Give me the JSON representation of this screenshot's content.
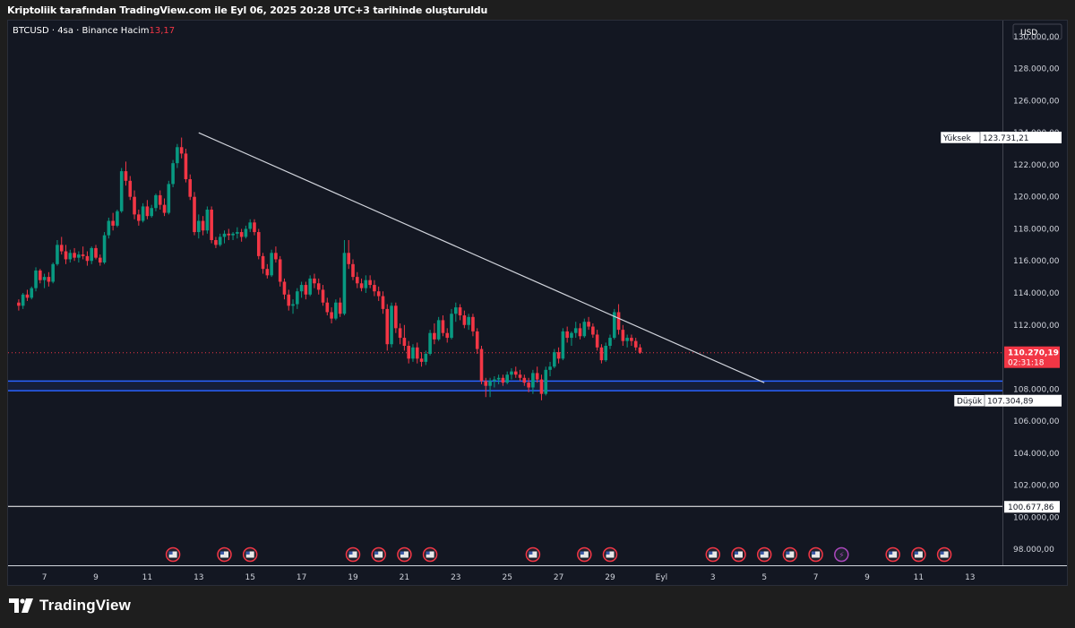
{
  "header": {
    "caption": "Kriptoliik tarafından TradingView.com ile Eyl 06, 2025 20:28 UTC+3 tarihinde oluşturuldu"
  },
  "legend": {
    "symbol": "BTCUSD · 4sa · Binance",
    "volume_label": "Hacim",
    "volume_value": "13,17"
  },
  "currency": "USD",
  "price_axis": {
    "ticks": [
      "98.000,00",
      "100.000,00",
      "102.000,00",
      "104.000,00",
      "106.000,00",
      "108.000,00",
      "110.000,00",
      "112.000,00",
      "114.000,00",
      "116.000,00",
      "118.000,00",
      "120.000,00",
      "122.000,00",
      "124.000,00",
      "126.000,00",
      "128.000,00",
      "130.000,00"
    ]
  },
  "time_axis": {
    "ticks": [
      "7",
      "9",
      "11",
      "13",
      "15",
      "17",
      "19",
      "21",
      "23",
      "25",
      "27",
      "29",
      "Eyl",
      "3",
      "5",
      "7",
      "9",
      "11",
      "13"
    ]
  },
  "labels": {
    "high_title": "Yüksek",
    "high_value": "123.731,21",
    "low_title": "Düşük",
    "low_value": "107.304,89",
    "last_price": "110.270,19",
    "countdown": "02:31:18",
    "level_value": "100.677,86"
  },
  "colors": {
    "up": "#089981",
    "down": "#f23645",
    "background": "#131722",
    "zone": "#2962ff",
    "trendline": "#d1d4dc"
  },
  "brand": {
    "name": "TradingView"
  },
  "chart_data": {
    "type": "candlestick",
    "symbol": "BTCUSD",
    "interval": "4sa",
    "exchange": "Binance",
    "y_range": [
      97000,
      131000
    ],
    "x_range_days": [
      "Ağu 6",
      "Eyl 13"
    ],
    "candles_start": "Ağu 6",
    "candle_interval_hours": 4,
    "candles": [
      [
        113400,
        113600,
        112900,
        113200
      ],
      [
        113200,
        114000,
        113000,
        113900
      ],
      [
        113900,
        114200,
        113500,
        113700
      ],
      [
        113700,
        114400,
        113600,
        114300
      ],
      [
        114300,
        115600,
        114100,
        115400
      ],
      [
        115400,
        115500,
        114600,
        114800
      ],
      [
        114800,
        115200,
        114300,
        115000
      ],
      [
        115000,
        115300,
        114400,
        114700
      ],
      [
        114700,
        115900,
        114600,
        115800
      ],
      [
        115800,
        117300,
        115700,
        117000
      ],
      [
        117000,
        117500,
        116400,
        116600
      ],
      [
        116600,
        117000,
        115800,
        116100
      ],
      [
        116100,
        116700,
        115900,
        116500
      ],
      [
        116500,
        116800,
        116000,
        116200
      ],
      [
        116200,
        116600,
        115900,
        116400
      ],
      [
        116400,
        116900,
        116100,
        116300
      ],
      [
        116300,
        116600,
        115700,
        116000
      ],
      [
        116000,
        116900,
        115800,
        116800
      ],
      [
        116800,
        117000,
        116100,
        116200
      ],
      [
        116200,
        116400,
        115700,
        115900
      ],
      [
        115900,
        117800,
        115800,
        117600
      ],
      [
        117600,
        118700,
        117400,
        118500
      ],
      [
        118500,
        119000,
        117900,
        118200
      ],
      [
        118200,
        119200,
        118100,
        119100
      ],
      [
        119100,
        121800,
        119000,
        121600
      ],
      [
        121600,
        122200,
        120700,
        121000
      ],
      [
        121000,
        121300,
        119800,
        120000
      ],
      [
        120000,
        120400,
        118600,
        118900
      ],
      [
        118900,
        119200,
        118200,
        118500
      ],
      [
        118500,
        119600,
        118400,
        119400
      ],
      [
        119400,
        119800,
        118600,
        118800
      ],
      [
        118800,
        119500,
        118700,
        119300
      ],
      [
        119300,
        120200,
        119100,
        120100
      ],
      [
        120100,
        120400,
        119200,
        119500
      ],
      [
        119500,
        119900,
        118800,
        119000
      ],
      [
        119000,
        121000,
        118900,
        120800
      ],
      [
        120800,
        122300,
        120600,
        122100
      ],
      [
        122100,
        123300,
        121800,
        123100
      ],
      [
        123100,
        123700,
        122400,
        122700
      ],
      [
        122700,
        123000,
        120900,
        121100
      ],
      [
        121100,
        121400,
        119800,
        120000
      ],
      [
        120000,
        120300,
        117600,
        117800
      ],
      [
        117800,
        118900,
        117400,
        118500
      ],
      [
        118500,
        118800,
        117600,
        117900
      ],
      [
        117900,
        119400,
        117700,
        119200
      ],
      [
        119200,
        119400,
        117100,
        117300
      ],
      [
        117300,
        117500,
        116800,
        117000
      ],
      [
        117000,
        117700,
        116900,
        117500
      ],
      [
        117500,
        117900,
        117100,
        117700
      ],
      [
        117700,
        118000,
        117300,
        117600
      ],
      [
        117600,
        117800,
        117300,
        117700
      ],
      [
        117700,
        118100,
        117400,
        117800
      ],
      [
        117800,
        118000,
        117200,
        117500
      ],
      [
        117500,
        118200,
        117400,
        118000
      ],
      [
        118000,
        118600,
        117800,
        118400
      ],
      [
        118400,
        118600,
        117600,
        117800
      ],
      [
        117800,
        118000,
        116100,
        116300
      ],
      [
        116300,
        116500,
        115200,
        115500
      ],
      [
        115500,
        115800,
        114900,
        115100
      ],
      [
        115100,
        116700,
        115000,
        116500
      ],
      [
        116500,
        116900,
        115900,
        116100
      ],
      [
        116100,
        116300,
        114400,
        114700
      ],
      [
        114700,
        114900,
        113600,
        113900
      ],
      [
        113900,
        114200,
        112900,
        113200
      ],
      [
        113200,
        113600,
        112700,
        113300
      ],
      [
        113300,
        114300,
        113000,
        114100
      ],
      [
        114100,
        114700,
        113700,
        114500
      ],
      [
        114500,
        114700,
        113600,
        113900
      ],
      [
        113900,
        115100,
        113800,
        114900
      ],
      [
        114900,
        115200,
        114300,
        114600
      ],
      [
        114600,
        114900,
        113900,
        114200
      ],
      [
        114200,
        114500,
        113200,
        113400
      ],
      [
        113400,
        113700,
        112600,
        112800
      ],
      [
        112800,
        113100,
        112100,
        112400
      ],
      [
        112400,
        113600,
        112300,
        113400
      ],
      [
        113400,
        113700,
        112500,
        112700
      ],
      [
        112700,
        117300,
        112600,
        116500
      ],
      [
        116500,
        117300,
        115500,
        115800
      ],
      [
        115800,
        116100,
        114800,
        115000
      ],
      [
        115000,
        115300,
        114300,
        114600
      ],
      [
        114600,
        114900,
        114100,
        114300
      ],
      [
        114300,
        115100,
        114000,
        114800
      ],
      [
        114800,
        115100,
        114300,
        114500
      ],
      [
        114500,
        114800,
        113800,
        114100
      ],
      [
        114100,
        114400,
        113500,
        113800
      ],
      [
        113800,
        114100,
        112700,
        113000
      ],
      [
        113000,
        113300,
        110400,
        110800
      ],
      [
        110800,
        113400,
        110600,
        113200
      ],
      [
        113200,
        113400,
        111500,
        111800
      ],
      [
        111800,
        112100,
        110800,
        111200
      ],
      [
        111200,
        112000,
        110400,
        110700
      ],
      [
        110700,
        111000,
        109600,
        109900
      ],
      [
        109900,
        110800,
        109700,
        110600
      ],
      [
        110600,
        110900,
        109600,
        109900
      ],
      [
        109900,
        110300,
        109400,
        109700
      ],
      [
        109700,
        110400,
        109500,
        110200
      ],
      [
        110200,
        111700,
        110100,
        111500
      ],
      [
        111500,
        112100,
        110800,
        111100
      ],
      [
        111100,
        112500,
        111000,
        112300
      ],
      [
        112300,
        112600,
        111300,
        111500
      ],
      [
        111500,
        111800,
        110900,
        111200
      ],
      [
        111200,
        113000,
        111100,
        112700
      ],
      [
        112700,
        113400,
        112200,
        113100
      ],
      [
        113100,
        113300,
        112300,
        112600
      ],
      [
        112600,
        112900,
        111800,
        112000
      ],
      [
        112000,
        112700,
        111700,
        112500
      ],
      [
        112500,
        112700,
        111300,
        111600
      ],
      [
        111600,
        111800,
        110200,
        110500
      ],
      [
        110500,
        110700,
        108300,
        108500
      ],
      [
        108500,
        108700,
        107500,
        108200
      ],
      [
        108200,
        108700,
        107500,
        108500
      ],
      [
        108500,
        108800,
        108100,
        108600
      ],
      [
        108600,
        108900,
        108300,
        108700
      ],
      [
        108700,
        108900,
        108200,
        108400
      ],
      [
        108400,
        109100,
        108300,
        108900
      ],
      [
        108900,
        109300,
        108600,
        109100
      ],
      [
        109100,
        109400,
        108700,
        108900
      ],
      [
        108900,
        109200,
        108500,
        108700
      ],
      [
        108700,
        108900,
        108200,
        108400
      ],
      [
        108400,
        108700,
        107800,
        108100
      ],
      [
        108100,
        109200,
        107700,
        109000
      ],
      [
        109000,
        109400,
        108400,
        108600
      ],
      [
        108600,
        108900,
        107300,
        107700
      ],
      [
        107700,
        109400,
        107600,
        109200
      ],
      [
        109200,
        109700,
        108800,
        109400
      ],
      [
        109400,
        110500,
        109300,
        110300
      ],
      [
        110300,
        110600,
        109600,
        109900
      ],
      [
        109900,
        111800,
        109800,
        111600
      ],
      [
        111600,
        111900,
        110900,
        111200
      ],
      [
        111200,
        111600,
        110700,
        111500
      ],
      [
        111500,
        112200,
        111200,
        111800
      ],
      [
        111800,
        112100,
        111100,
        111300
      ],
      [
        111300,
        112400,
        111200,
        112200
      ],
      [
        112200,
        112500,
        111700,
        111900
      ],
      [
        111900,
        112100,
        111200,
        111400
      ],
      [
        111400,
        111700,
        110400,
        110600
      ],
      [
        110600,
        110800,
        109600,
        109800
      ],
      [
        109800,
        110900,
        109700,
        110700
      ],
      [
        110700,
        111400,
        110500,
        111200
      ],
      [
        111200,
        113000,
        111100,
        112800
      ],
      [
        112800,
        113300,
        111400,
        111700
      ],
      [
        111700,
        112000,
        110700,
        111000
      ],
      [
        111000,
        111400,
        110600,
        111200
      ],
      [
        111200,
        111400,
        110700,
        111000
      ],
      [
        111000,
        111200,
        110400,
        110600
      ],
      [
        110600,
        110800,
        110200,
        110270
      ]
    ],
    "horizontal_levels": [
      {
        "name": "last_price",
        "value": 110270.19
      },
      {
        "name": "level",
        "value": 100677.86
      }
    ],
    "zone": {
      "from": 107900,
      "to": 108500
    },
    "trendline": {
      "from": [
        "Ağu 13",
        124000
      ],
      "to": [
        "Eyl 4",
        108400
      ]
    },
    "high": 123731.21,
    "low": 107304.89,
    "event_markers_days": [
      "Ağu 12",
      "Ağu 14",
      "Ağu 15",
      "Ağu 19",
      "Ağu 20",
      "Ağu 21",
      "Ağu 22",
      "Ağu 26",
      "Ağu 28",
      "Ağu 29",
      "Eyl 2",
      "Eyl 3",
      "Eyl 4",
      "Eyl 5",
      "Eyl 6",
      "Eyl 9",
      "Eyl 10",
      "Eyl 11"
    ]
  }
}
